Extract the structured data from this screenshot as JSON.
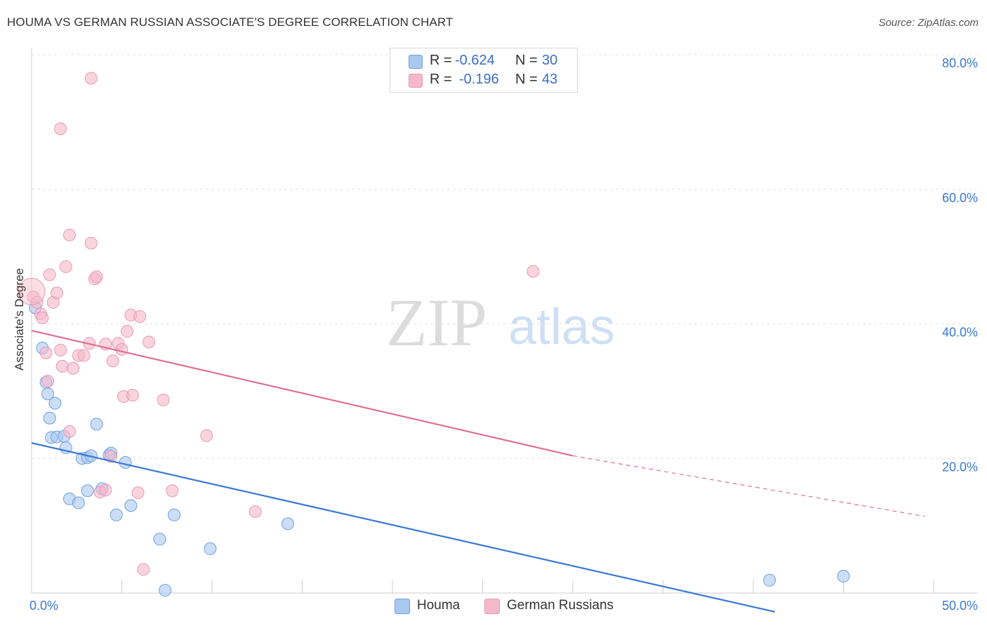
{
  "header": {
    "title": "HOUMA VS GERMAN RUSSIAN ASSOCIATE'S DEGREE CORRELATION CHART",
    "source": "Source: ZipAtlas.com"
  },
  "watermark": {
    "zip": "ZIP",
    "atlas": "atlas"
  },
  "legend": {
    "rows": [
      {
        "r_label": "R =",
        "r_value": "-0.624",
        "n_label": "N =",
        "n_value": "30",
        "color": "#a8c8f0"
      },
      {
        "r_label": "R =",
        "r_value": "-0.196",
        "n_label": "N =",
        "n_value": "43",
        "color": "#f5b8ca"
      }
    ]
  },
  "bottom_legend": [
    {
      "label": "Houma",
      "color": "#a8c8f0"
    },
    {
      "label": "German Russians",
      "color": "#f5b8ca"
    }
  ],
  "chart_data": {
    "type": "scatter",
    "title": "HOUMA VS GERMAN RUSSIAN ASSOCIATE'S DEGREE CORRELATION CHART",
    "xlabel": "",
    "ylabel": "Associate's Degree",
    "xlim": [
      0,
      50
    ],
    "ylim": [
      0,
      80
    ],
    "x_tick_labels": [
      "0.0%",
      "50.0%"
    ],
    "y_ticks": [
      20,
      40,
      60,
      80
    ],
    "y_tick_labels": [
      "20.0%",
      "40.0%",
      "60.0%",
      "80.0%"
    ],
    "grid": true,
    "series": [
      {
        "name": "Houma",
        "color": "#a8c8f0",
        "stroke": "#6fa0de",
        "trend_color": "#3a78d4",
        "trend": {
          "x_start": 0,
          "y_start": 22.3,
          "x_end": 41.2,
          "y_end": -2.8,
          "dashed_to": null
        },
        "points": [
          [
            0.2,
            42.4
          ],
          [
            0.6,
            36.4
          ],
          [
            0.8,
            31.3
          ],
          [
            0.9,
            29.6
          ],
          [
            1.0,
            26.0
          ],
          [
            1.3,
            28.2
          ],
          [
            1.1,
            23.1
          ],
          [
            1.4,
            23.2
          ],
          [
            1.8,
            23.3
          ],
          [
            1.9,
            21.6
          ],
          [
            2.8,
            20.0
          ],
          [
            3.1,
            20.1
          ],
          [
            3.3,
            20.4
          ],
          [
            4.3,
            20.5
          ],
          [
            4.4,
            20.8
          ],
          [
            5.2,
            19.4
          ],
          [
            3.6,
            25.1
          ],
          [
            2.1,
            14.0
          ],
          [
            2.6,
            13.4
          ],
          [
            3.1,
            15.2
          ],
          [
            3.9,
            15.5
          ],
          [
            4.7,
            11.6
          ],
          [
            5.5,
            13.0
          ],
          [
            7.9,
            11.6
          ],
          [
            7.1,
            8.0
          ],
          [
            9.9,
            6.6
          ],
          [
            14.2,
            10.3
          ],
          [
            7.4,
            0.4
          ],
          [
            40.9,
            1.9
          ],
          [
            45.0,
            2.5
          ]
        ]
      },
      {
        "name": "German Russians",
        "color": "#f5b8ca",
        "stroke": "#e89ab2",
        "trend_color": "#e0708f",
        "trend": {
          "x_start": 0,
          "y_start": 39.0,
          "x_end": 30.0,
          "y_end": 20.4,
          "dashed_to": [
            49.5,
            11.4
          ]
        },
        "points": [
          [
            0.1,
            44.0
          ],
          [
            0.3,
            43.2
          ],
          [
            0.5,
            41.5
          ],
          [
            0.6,
            40.9
          ],
          [
            0.8,
            35.7
          ],
          [
            0.9,
            31.5
          ],
          [
            1.0,
            47.3
          ],
          [
            1.2,
            43.2
          ],
          [
            1.4,
            44.6
          ],
          [
            1.6,
            36.1
          ],
          [
            1.7,
            33.7
          ],
          [
            1.9,
            48.5
          ],
          [
            2.1,
            53.2
          ],
          [
            2.3,
            33.4
          ],
          [
            2.6,
            35.3
          ],
          [
            2.9,
            35.3
          ],
          [
            3.2,
            37.1
          ],
          [
            3.3,
            52.0
          ],
          [
            3.5,
            46.7
          ],
          [
            3.6,
            47.0
          ],
          [
            4.1,
            37.0
          ],
          [
            4.5,
            34.5
          ],
          [
            4.8,
            37.1
          ],
          [
            5.0,
            36.2
          ],
          [
            5.3,
            38.9
          ],
          [
            5.5,
            41.3
          ],
          [
            6.0,
            41.1
          ],
          [
            6.5,
            37.3
          ],
          [
            5.1,
            29.2
          ],
          [
            5.6,
            29.4
          ],
          [
            7.3,
            28.7
          ],
          [
            9.7,
            23.4
          ],
          [
            2.1,
            24.0
          ],
          [
            4.4,
            20.3
          ],
          [
            3.8,
            15.0
          ],
          [
            4.1,
            15.3
          ],
          [
            5.9,
            14.9
          ],
          [
            7.8,
            15.2
          ],
          [
            12.4,
            12.1
          ],
          [
            6.2,
            3.5
          ],
          [
            1.6,
            69.0
          ],
          [
            3.3,
            76.5
          ],
          [
            27.8,
            47.8
          ]
        ]
      }
    ]
  }
}
